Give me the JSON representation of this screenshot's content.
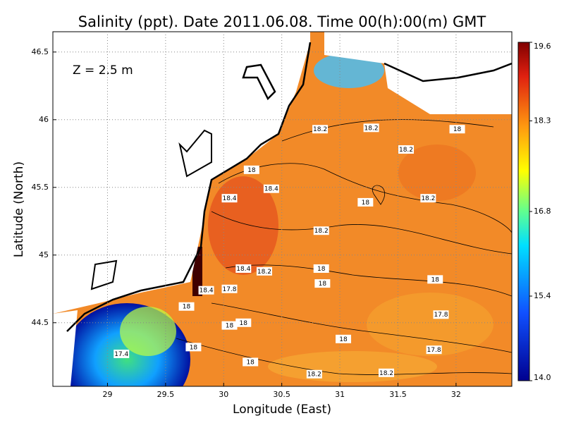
{
  "chart_data": {
    "type": "contour-map",
    "title": "Salinity (ppt). Date 2011.06.08. Time 00(h):00(m) GMT",
    "annotation": "Z = 2.5 m",
    "x_label": "Longitude (East)",
    "y_label": "Latitude (North)",
    "xlim": [
      28.53,
      32.48
    ],
    "ylim": [
      44.03,
      46.65
    ],
    "xticks": [
      29,
      29.5,
      30,
      30.5,
      31,
      31.5,
      32
    ],
    "yticks": [
      44.5,
      45,
      45.5,
      46,
      46.5
    ],
    "grid": true,
    "colorbar": {
      "lim": [
        14,
        19.6
      ],
      "ticks": [
        {
          "value": 14,
          "label": "14.0"
        },
        15.4,
        16.8,
        18.3,
        19.6
      ]
    },
    "contour_labels": [
      {
        "value": 18.2,
        "x": 30.83,
        "y": 45.93
      },
      {
        "value": 18.2,
        "x": 31.27,
        "y": 45.94
      },
      {
        "value": 18,
        "x": 32.01,
        "y": 45.93
      },
      {
        "value": 18.2,
        "x": 31.57,
        "y": 45.78
      },
      {
        "value": 18,
        "x": 30.24,
        "y": 45.63
      },
      {
        "value": 18.4,
        "x": 30.41,
        "y": 45.49
      },
      {
        "value": 18.4,
        "x": 30.05,
        "y": 45.42
      },
      {
        "value": 18,
        "x": 31.22,
        "y": 45.39
      },
      {
        "value": 18.2,
        "x": 31.76,
        "y": 45.42
      },
      {
        "value": 18.2,
        "x": 30.84,
        "y": 45.18
      },
      {
        "value": 18.4,
        "x": 30.17,
        "y": 44.9
      },
      {
        "value": 18.2,
        "x": 30.35,
        "y": 44.88
      },
      {
        "value": 18,
        "x": 30.84,
        "y": 44.9
      },
      {
        "value": 18,
        "x": 30.85,
        "y": 44.79
      },
      {
        "value": 18,
        "x": 31.82,
        "y": 44.82
      },
      {
        "value": 18.4,
        "x": 29.85,
        "y": 44.74
      },
      {
        "value": 17.8,
        "x": 30.05,
        "y": 44.75
      },
      {
        "value": 18,
        "x": 29.68,
        "y": 44.62
      },
      {
        "value": 17.8,
        "x": 31.87,
        "y": 44.56
      },
      {
        "value": 18,
        "x": 30.05,
        "y": 44.48
      },
      {
        "value": 18,
        "x": 30.17,
        "y": 44.5
      },
      {
        "value": 18,
        "x": 31.03,
        "y": 44.38
      },
      {
        "value": 18,
        "x": 29.74,
        "y": 44.32
      },
      {
        "value": 17.8,
        "x": 31.81,
        "y": 44.3
      },
      {
        "value": 18,
        "x": 30.23,
        "y": 44.21
      },
      {
        "value": 18.2,
        "x": 30.78,
        "y": 44.12
      },
      {
        "value": 18.2,
        "x": 31.4,
        "y": 44.13
      },
      {
        "value": 17.4,
        "x": 29.12,
        "y": 44.27
      }
    ]
  }
}
